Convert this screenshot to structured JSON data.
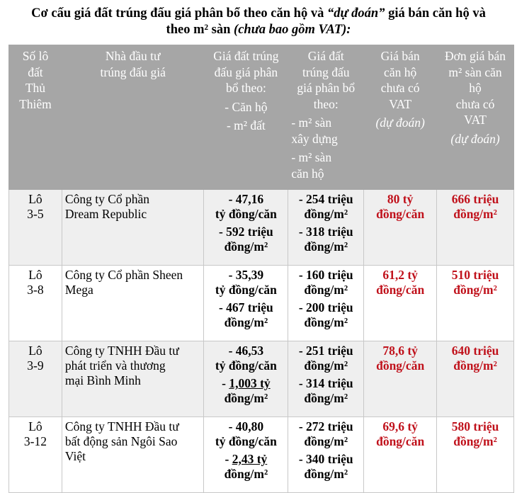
{
  "title": {
    "line1_a": "Cơ cấu giá đất trúng đấu giá phân bổ theo căn hộ và ",
    "line1_italic": "“dự đoán”",
    "line1_b": " giá bán căn hộ và",
    "line2_a": "theo m² sàn ",
    "line2_italic": "(chưa bao gồm VAT):"
  },
  "headers": [
    [
      [
        "Số lô",
        "đất",
        "Thủ",
        "Thiêm"
      ]
    ],
    [
      [
        "Nhà đầu tư",
        "trúng đấu giá"
      ]
    ],
    [
      [
        "Giá đất trúng",
        "đấu giá phân",
        "bổ theo:"
      ],
      [
        "- Căn hộ"
      ],
      [
        "- m² đất"
      ]
    ],
    [
      [
        "Giá đất",
        "trúng đấu",
        "giá phân bổ",
        "theo:"
      ],
      [
        "- m² sàn",
        "xây dựng"
      ],
      [
        "- m² sàn",
        "căn hộ"
      ]
    ],
    [
      [
        "Giá bán",
        "căn hộ",
        "chưa có",
        "VAT"
      ],
      [
        "(dự đoán)"
      ]
    ],
    [
      [
        "Đơn giá bán",
        "m² sàn căn",
        "hộ",
        "chưa có",
        "VAT"
      ],
      [
        "(dự đoán)"
      ]
    ]
  ],
  "rows": [
    {
      "lot": [
        "Lô",
        "3-5"
      ],
      "investor": [
        "Công ty Cổ phần",
        "Dream Republic"
      ],
      "land_price": [
        [
          "- 47,16",
          "tỷ đồng/căn"
        ],
        [
          "- 592 triệu",
          "đồng/m²"
        ]
      ],
      "floor_price": [
        [
          "- 254 triệu",
          "đồng/m²"
        ],
        [
          "- 318 triệu",
          "đồng/m²"
        ]
      ],
      "sale_price": [
        "80 tỷ",
        "đồng/căn"
      ],
      "unit_price": [
        "666 triệu",
        "đồng/m²"
      ]
    },
    {
      "lot": [
        "Lô",
        "3-8"
      ],
      "investor": [
        "Công ty Cổ phần Sheen",
        "Mega"
      ],
      "land_price": [
        [
          "- 35,39",
          "tỷ đồng/căn"
        ],
        [
          "- 467 triệu",
          "đồng/m²"
        ]
      ],
      "floor_price": [
        [
          "- 160 triệu",
          "đồng/m²"
        ],
        [
          "- 200 triệu",
          "đồng/m²"
        ]
      ],
      "sale_price": [
        "61,2 tỷ",
        "đồng/căn"
      ],
      "unit_price": [
        "510 triệu",
        "đồng/m²"
      ]
    },
    {
      "lot": [
        "Lô",
        "3-9"
      ],
      "investor": [
        "Công ty TNHH Đầu tư",
        "phát triển và thương",
        "mại Bình Minh"
      ],
      "land_price": [
        [
          "- 46,53",
          "tỷ đồng/căn"
        ],
        [
          "-  1,003 tỷ",
          "đồng/m²"
        ]
      ],
      "floor_price": [
        [
          "- 251 triệu",
          "đồng/m²"
        ],
        [
          "- 314 triệu",
          "đồng/m²"
        ]
      ],
      "sale_price": [
        "78,6 tỷ",
        "đồng/căn"
      ],
      "unit_price": [
        "640 triệu",
        "đồng/m²"
      ]
    },
    {
      "lot": [
        "Lô",
        "3-12"
      ],
      "investor": [
        "Công ty TNHH Đầu tư",
        "bất động sản Ngôi Sao",
        "Việt"
      ],
      "land_price": [
        [
          "- 40,80",
          "tỷ đồng/căn"
        ],
        [
          "-  2,43 tỷ",
          "đồng/m²"
        ]
      ],
      "floor_price": [
        [
          "- 272 triệu",
          "đồng/m²"
        ],
        [
          "- 340 triệu",
          "đồng/m²"
        ]
      ],
      "sale_price": [
        "69,6 tỷ",
        "đồng/căn"
      ],
      "unit_price": [
        "580 triệu",
        "đồng/m²"
      ]
    }
  ],
  "colors": {
    "header_bg": "#a6a6a6",
    "highlight_red": "#c0111b",
    "alt_row_bg": "#efefef"
  }
}
